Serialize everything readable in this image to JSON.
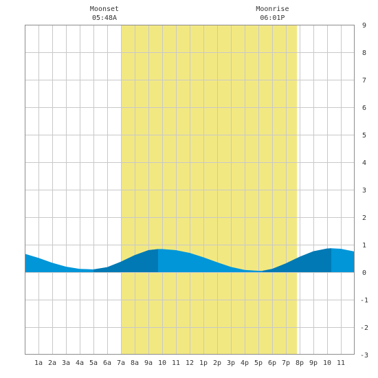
{
  "chart_data": {
    "type": "area",
    "title": "",
    "xlabel": "",
    "ylabel": "",
    "xlim": [
      0,
      24
    ],
    "ylim": [
      -3,
      9
    ],
    "yticks": [
      -3,
      -2,
      -1,
      0,
      1,
      2,
      3,
      4,
      5,
      6,
      7,
      8,
      9
    ],
    "xtick_labels": [
      "1a",
      "2a",
      "3a",
      "4a",
      "5a",
      "6a",
      "7a",
      "8a",
      "9a",
      "10",
      "11",
      "12",
      "1p",
      "2p",
      "3p",
      "4p",
      "5p",
      "6p",
      "7p",
      "8p",
      "9p",
      "10",
      "11"
    ],
    "grid": true,
    "moon_events": [
      {
        "label": "Moonset",
        "time": "05:48A",
        "hour": 5.8
      },
      {
        "label": "Moonrise",
        "time": "06:01P",
        "hour": 18.02
      }
    ],
    "highlight_band": {
      "start": 7.0,
      "end": 19.8
    },
    "tide": {
      "x": [
        0,
        1,
        2,
        3,
        4,
        5,
        6,
        7,
        8,
        9,
        9.7,
        10,
        11,
        12,
        13,
        14,
        15,
        16,
        17,
        17.3,
        18,
        19,
        20,
        21,
        22,
        22.3,
        23,
        24
      ],
      "y": [
        0.67,
        0.52,
        0.34,
        0.2,
        0.12,
        0.1,
        0.18,
        0.38,
        0.62,
        0.8,
        0.84,
        0.84,
        0.8,
        0.7,
        0.54,
        0.36,
        0.19,
        0.08,
        0.05,
        0.05,
        0.12,
        0.32,
        0.56,
        0.76,
        0.86,
        0.87,
        0.85,
        0.75
      ]
    },
    "dark_segments": [
      [
        5.0,
        9.7
      ],
      [
        17.3,
        22.3
      ]
    ],
    "colors": {
      "background": "#ffffff",
      "highlight": "#f2e882",
      "grid": "#c8c8c8",
      "tide": "#0096d8",
      "tide_dark": "#0079b4",
      "frame": "#8c8c8c"
    }
  }
}
